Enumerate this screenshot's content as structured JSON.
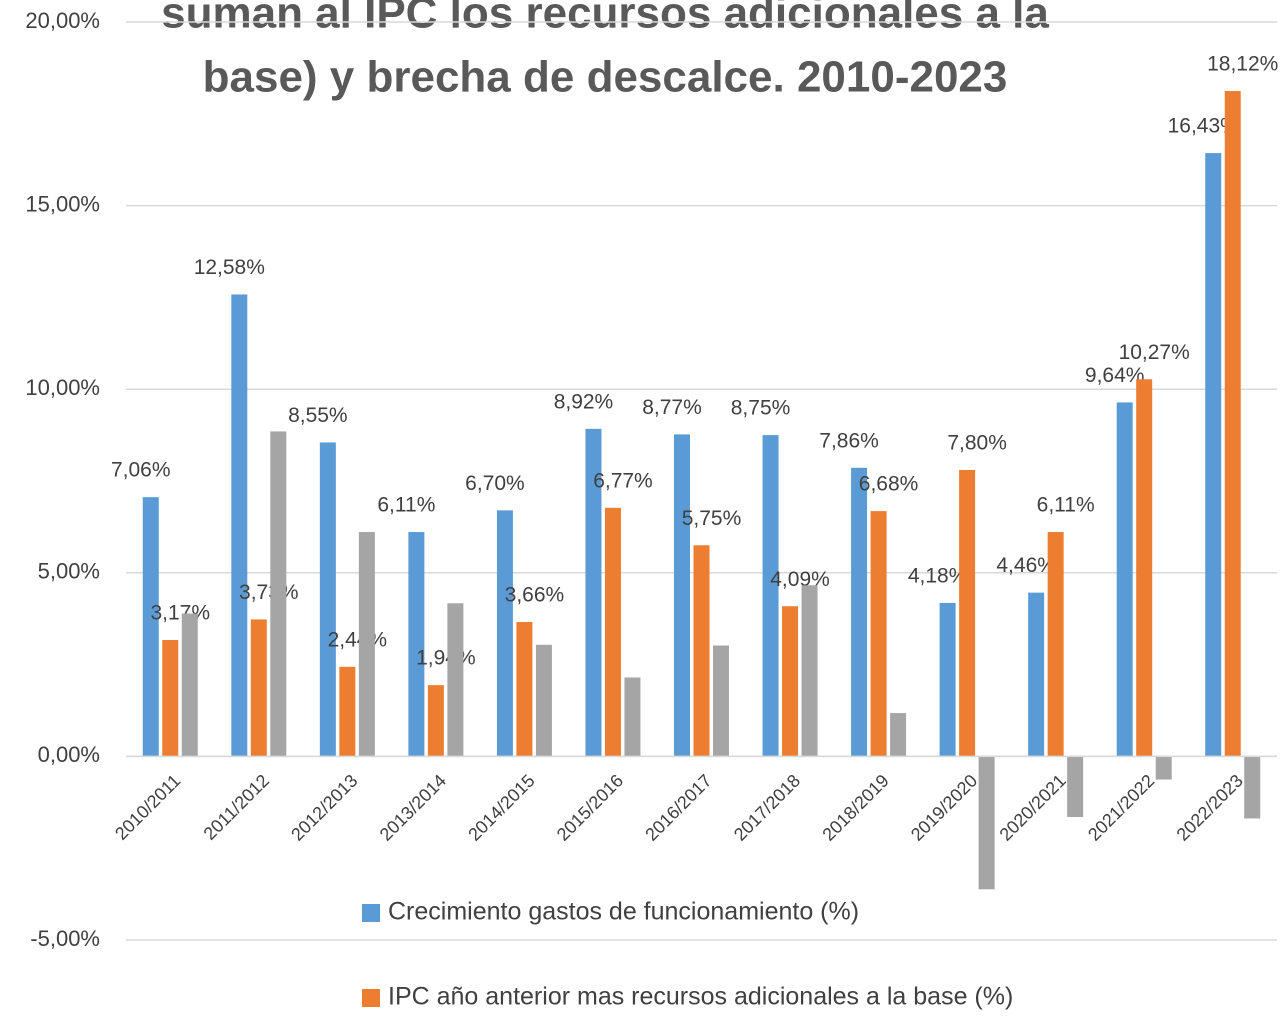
{
  "chart_data": {
    "type": "bar",
    "title": [
      "suman al IPC los recursos adicionales a la",
      "base) y brecha de descalce. 2010-2023"
    ],
    "categories": [
      "2010/2011",
      "2011/2012",
      "2012/2013",
      "2013/2014",
      "2014/2015",
      "2015/2016",
      "2016/2017",
      "2017/2018",
      "2018/2019",
      "2019/2020",
      "2020/2021",
      "2021/2022",
      "2022/2023"
    ],
    "series": [
      {
        "name": "Crecimiento gastos de funcionamiento (%)",
        "color": "#5b9bd5",
        "values": [
          7.06,
          12.58,
          8.55,
          6.11,
          6.7,
          8.92,
          8.77,
          8.75,
          7.86,
          4.18,
          4.46,
          9.64,
          16.43
        ],
        "value_labels": [
          "7,06%",
          "12,58%",
          "8,55%",
          "6,11%",
          "6,70%",
          "8,92%",
          "8,77%",
          "8,75%",
          "7,86%",
          "4,18%",
          "4,46%",
          "9,64%",
          "16,43%"
        ]
      },
      {
        "name": "IPC año anterior mas recursos adicionales a la base (%)",
        "color": "#ed7d31",
        "values": [
          3.17,
          3.73,
          2.44,
          1.94,
          3.66,
          6.77,
          5.75,
          4.09,
          6.68,
          7.8,
          6.11,
          10.27,
          18.12
        ],
        "value_labels": [
          "3,17%",
          "3,73%",
          "2,44%",
          "1,94%",
          "3,66%",
          "6,77%",
          "5,75%",
          "4,09%",
          "6,68%",
          "7,80%",
          "6,11%",
          "10,27%",
          "18,12%"
        ]
      },
      {
        "color": "#a5a5a5",
        "values": [
          3.89,
          8.85,
          6.11,
          4.17,
          3.04,
          2.15,
          3.02,
          4.66,
          1.18,
          -3.62,
          -1.65,
          -0.63,
          -1.69
        ]
      }
    ],
    "ylim": [
      -5,
      20
    ],
    "yticks": [
      {
        "value": -5,
        "label": "-5,00%"
      },
      {
        "value": 0,
        "label": "0,00%"
      },
      {
        "value": 5,
        "label": "5,00%"
      },
      {
        "value": 10,
        "label": "10,00%"
      },
      {
        "value": 15,
        "label": "15,00%"
      },
      {
        "value": 20,
        "label": "20,00%"
      }
    ],
    "grid": true
  }
}
